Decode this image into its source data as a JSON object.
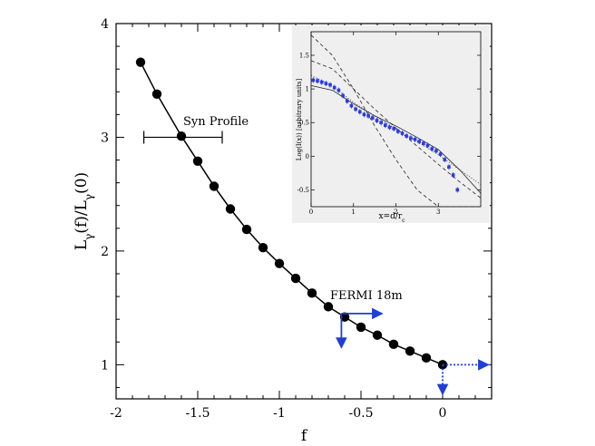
{
  "chart_data": {
    "type": "line",
    "title": "",
    "xlabel": "f",
    "ylabel": "L_γ(f)/L_γ(0)",
    "xlim": [
      -2,
      0.3
    ],
    "ylim": [
      0.7,
      4
    ],
    "xticks": [
      -2,
      -1.5,
      -1,
      -0.5,
      0
    ],
    "yticks": [
      1,
      2,
      3,
      4
    ],
    "grid": false,
    "series": [
      {
        "name": "L_γ(f)/L_γ(0)",
        "x": [
          -1.85,
          -1.75,
          -1.6,
          -1.5,
          -1.4,
          -1.3,
          -1.2,
          -1.1,
          -1.0,
          -0.9,
          -0.8,
          -0.7,
          -0.6,
          -0.5,
          -0.4,
          -0.3,
          -0.2,
          -0.1,
          0.0
        ],
        "y": [
          3.66,
          3.38,
          3.01,
          2.79,
          2.57,
          2.37,
          2.19,
          2.03,
          1.89,
          1.76,
          1.63,
          1.51,
          1.42,
          1.33,
          1.26,
          1.18,
          1.12,
          1.06,
          1.0
        ]
      }
    ],
    "annotations": {
      "syn_profile": {
        "label": "Syn Profile",
        "y": 3.0,
        "x_min": -1.83,
        "x_max": -1.35
      },
      "fermi": {
        "label": "FERMI 18m",
        "x": -0.62,
        "y": 1.45,
        "arrow_right_to": -0.37,
        "arrow_down_to": 1.15
      },
      "origin_limit": {
        "x": 0.0,
        "y": 1.0,
        "arrow_right_to": 0.28,
        "arrow_down_to": 0.74
      }
    },
    "inset": {
      "type": "scatter+line",
      "xlabel": "x=d/r",
      "xlabel_sub": "c",
      "ylabel": "Log(I(x)) [arbitrary units]",
      "xlim": [
        0,
        4
      ],
      "ylim": [
        -0.75,
        1.85
      ],
      "xticks": [
        0,
        1,
        2,
        3
      ],
      "yticks": [
        -0.5,
        0,
        0.5,
        1,
        1.5
      ],
      "points": {
        "x": [
          0.05,
          0.15,
          0.25,
          0.35,
          0.45,
          0.55,
          0.65,
          0.75,
          0.85,
          0.95,
          1.05,
          1.15,
          1.25,
          1.35,
          1.45,
          1.55,
          1.65,
          1.75,
          1.85,
          1.95,
          2.05,
          2.15,
          2.25,
          2.35,
          2.45,
          2.55,
          2.65,
          2.75,
          2.85,
          2.95,
          3.05,
          3.15,
          3.25,
          3.35,
          3.45
        ],
        "y": [
          1.13,
          1.12,
          1.1,
          1.08,
          1.06,
          1.02,
          0.98,
          0.9,
          0.82,
          0.75,
          0.7,
          0.66,
          0.62,
          0.6,
          0.57,
          0.53,
          0.5,
          0.46,
          0.43,
          0.41,
          0.37,
          0.34,
          0.3,
          0.27,
          0.25,
          0.22,
          0.19,
          0.16,
          0.11,
          0.08,
          0.03,
          -0.05,
          -0.16,
          -0.28,
          -0.5
        ]
      },
      "model_lines": [
        {
          "name": "dashed steep",
          "x": [
            0,
            0.5,
            1,
            1.5,
            2,
            2.5,
            3,
            3.5,
            4
          ],
          "y": [
            1.8,
            1.5,
            1.0,
            0.45,
            -0.05,
            -0.5,
            -0.85,
            -1.1,
            -1.3
          ]
        },
        {
          "name": "dashed medium",
          "x": [
            0,
            0.5,
            1,
            1.5,
            2,
            2.5,
            3,
            3.5,
            4
          ],
          "y": [
            1.42,
            1.3,
            1.0,
            0.7,
            0.42,
            0.15,
            -0.12,
            -0.38,
            -0.62
          ]
        },
        {
          "name": "dotted",
          "x": [
            0,
            0.5,
            1,
            1.5,
            2,
            2.5,
            3,
            3.5,
            4
          ],
          "y": [
            1.2,
            1.05,
            0.8,
            0.6,
            0.4,
            0.22,
            0.02,
            -0.2,
            -0.42
          ]
        },
        {
          "name": "solid",
          "x": [
            0,
            0.5,
            1,
            1.5,
            2,
            2.5,
            3,
            3.5,
            4
          ],
          "y": [
            1.05,
            0.98,
            0.78,
            0.6,
            0.45,
            0.28,
            0.1,
            -0.2,
            -0.55
          ]
        }
      ]
    }
  },
  "colors": {
    "axis": "#000000",
    "data_line": "#000000",
    "marker": "#000000",
    "arrow": "#1f3fd6",
    "inset_points": "#2b3be0",
    "inset_bg": "#efefef"
  }
}
